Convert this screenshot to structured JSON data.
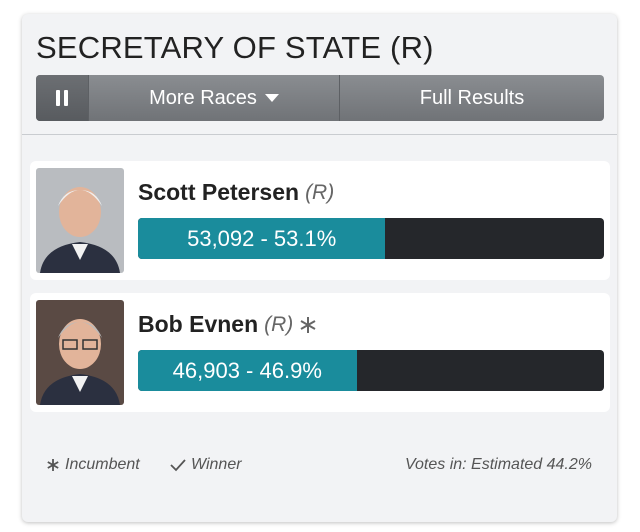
{
  "header": {
    "title": "SECRETARY OF STATE (R)"
  },
  "buttons": {
    "more_races": "More Races",
    "full_results": "Full Results"
  },
  "candidates": [
    {
      "name": "Scott Petersen",
      "party": "(R)",
      "result_label": "53,092 - 53.1%",
      "percent": 53.1,
      "incumbent": false
    },
    {
      "name": "Bob Evnen",
      "party": "(R)",
      "result_label": "46,903 - 46.9%",
      "percent": 46.9,
      "incumbent": true
    }
  ],
  "footer": {
    "incumbent": "Incumbent",
    "winner": "Winner",
    "votes_in": "Votes in: Estimated 44.2%"
  }
}
